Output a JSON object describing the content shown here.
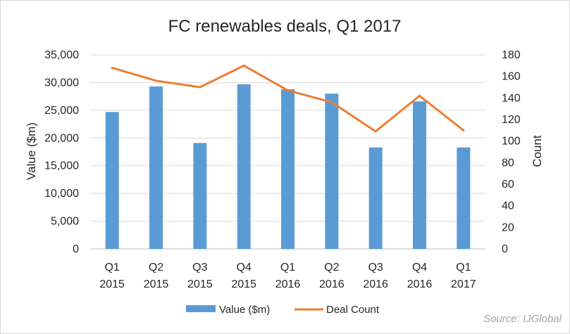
{
  "chart_data": {
    "type": "bar",
    "title": "FC renewables deals, Q1 2017",
    "categories": [
      [
        "Q1",
        "2015"
      ],
      [
        "Q2",
        "2015"
      ],
      [
        "Q3",
        "2015"
      ],
      [
        "Q4",
        "2015"
      ],
      [
        "Q1",
        "2016"
      ],
      [
        "Q2",
        "2016"
      ],
      [
        "Q3",
        "2016"
      ],
      [
        "Q4",
        "2016"
      ],
      [
        "Q1",
        "2017"
      ]
    ],
    "series": [
      {
        "name": "Value ($m)",
        "type": "bar",
        "axis": "left",
        "color": "#5b9bd5",
        "values": [
          24700,
          29300,
          19100,
          29700,
          28800,
          28000,
          18300,
          26600,
          18300
        ]
      },
      {
        "name": "Deal Count",
        "type": "line",
        "axis": "right",
        "color": "#ed7d31",
        "values": [
          168,
          156,
          150,
          170,
          147,
          136,
          109,
          142,
          110
        ]
      }
    ],
    "ylabel": "Value ($m)",
    "ylim": [
      0,
      35000
    ],
    "yticks": [
      "0",
      "5,000",
      "10,000",
      "15,000",
      "20,000",
      "25,000",
      "30,000",
      "35,000"
    ],
    "y2label": "Count",
    "y2lim": [
      0,
      180
    ],
    "y2ticks": [
      "0",
      "20",
      "40",
      "60",
      "80",
      "100",
      "120",
      "140",
      "160",
      "180"
    ],
    "grid": true,
    "legend_position": "bottom",
    "source": "Source: IJGlobal"
  }
}
